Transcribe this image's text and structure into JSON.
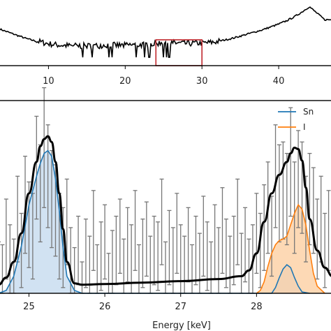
{
  "chart_data": [
    {
      "type": "line",
      "name": "overview",
      "x": [
        0,
        1,
        2,
        3,
        4,
        5,
        6,
        7,
        8,
        9,
        10,
        11,
        12,
        13,
        14,
        15,
        16,
        17,
        18,
        19,
        20,
        21,
        22,
        23,
        24,
        25,
        26,
        27,
        28,
        29,
        30,
        31,
        32,
        33,
        34,
        35,
        36,
        37,
        38,
        39,
        40,
        41,
        42,
        43,
        44,
        45,
        46
      ],
      "y": [
        0.72,
        0.7,
        0.66,
        0.6,
        0.55,
        0.5,
        0.45,
        0.4,
        0.36,
        0.33,
        0.3,
        0.28,
        0.27,
        0.26,
        0.26,
        0.26,
        0.26,
        0.27,
        0.28,
        0.27,
        0.27,
        0.28,
        0.28,
        0.29,
        0.3,
        0.33,
        0.32,
        0.31,
        0.3,
        0.31,
        0.31,
        0.32,
        0.34,
        0.37,
        0.4,
        0.44,
        0.48,
        0.52,
        0.56,
        0.61,
        0.66,
        0.72,
        0.79,
        0.88,
        0.98,
        0.86,
        0.74
      ],
      "xlim": [
        3.5,
        47
      ],
      "xticks": [
        10,
        20,
        30,
        40
      ],
      "ylim": [
        0,
        1
      ],
      "zoom_box": [
        24,
        30
      ],
      "color": "#000000",
      "box_color": "#c0282d"
    },
    {
      "type": "area",
      "name": "zoom",
      "xlabel": "Energy [keV]",
      "xlim": [
        24.6,
        29.0
      ],
      "xticks": [
        25,
        26,
        27,
        28
      ],
      "ylim": [
        0,
        1.35
      ],
      "fit_x": [
        24.6,
        24.7,
        24.8,
        24.9,
        25.0,
        25.1,
        25.15,
        25.2,
        25.25,
        25.3,
        25.35,
        25.4,
        25.45,
        25.5,
        25.6,
        25.7,
        26.0,
        26.5,
        27.0,
        27.5,
        27.8,
        27.9,
        28.0,
        28.1,
        28.2,
        28.3,
        28.4,
        28.45,
        28.5,
        28.55,
        28.6,
        28.65,
        28.7,
        28.8,
        28.9,
        29.0
      ],
      "fit_y": [
        0.06,
        0.11,
        0.22,
        0.42,
        0.7,
        0.92,
        1.03,
        1.08,
        1.1,
        1.06,
        0.92,
        0.7,
        0.45,
        0.22,
        0.07,
        0.06,
        0.065,
        0.075,
        0.085,
        0.1,
        0.12,
        0.16,
        0.28,
        0.5,
        0.7,
        0.83,
        0.92,
        0.98,
        1.02,
        1.01,
        0.93,
        0.74,
        0.52,
        0.3,
        0.18,
        0.12
      ],
      "series": [
        {
          "name": "Sn",
          "color": "#1f77b4",
          "fill": "#c6dbef",
          "x": [
            24.6,
            24.7,
            24.8,
            24.9,
            25.0,
            25.05,
            25.1,
            25.15,
            25.2,
            25.25,
            25.3,
            25.35,
            25.4,
            25.45,
            25.5,
            25.6,
            25.7,
            28.2,
            28.25,
            28.3,
            28.35,
            28.4,
            28.45,
            28.5,
            28.55,
            28.6,
            28.7
          ],
          "y": [
            0,
            0.02,
            0.12,
            0.33,
            0.62,
            0.72,
            0.82,
            0.91,
            0.98,
            1.0,
            0.96,
            0.8,
            0.58,
            0.32,
            0.12,
            0.02,
            0,
            0,
            0.04,
            0.11,
            0.17,
            0.2,
            0.18,
            0.11,
            0.05,
            0.01,
            0
          ]
        },
        {
          "name": "I",
          "color": "#ff7f0e",
          "fill": "#fdd0a2",
          "x": [
            28.0,
            28.05,
            28.1,
            28.15,
            28.2,
            28.25,
            28.3,
            28.35,
            28.4,
            28.45,
            28.5,
            28.55,
            28.6,
            28.65,
            28.7,
            28.75,
            28.8,
            28.9
          ],
          "y": [
            0,
            0.02,
            0.08,
            0.19,
            0.28,
            0.34,
            0.37,
            0.38,
            0.4,
            0.48,
            0.56,
            0.62,
            0.59,
            0.48,
            0.3,
            0.14,
            0.05,
            0
          ]
        }
      ],
      "errorbars": {
        "x": [
          24.6,
          24.65,
          24.7,
          24.75,
          24.8,
          24.85,
          24.9,
          24.95,
          25.0,
          25.05,
          25.1,
          25.15,
          25.2,
          25.25,
          25.3,
          25.35,
          25.4,
          25.45,
          25.5,
          25.55,
          25.6,
          25.65,
          25.7,
          25.75,
          25.8,
          25.85,
          25.9,
          25.95,
          26.0,
          26.05,
          26.1,
          26.15,
          26.2,
          26.25,
          26.3,
          26.35,
          26.4,
          26.45,
          26.5,
          26.55,
          26.6,
          26.65,
          26.7,
          26.75,
          26.8,
          26.85,
          26.9,
          26.95,
          27.0,
          27.05,
          27.1,
          27.15,
          27.2,
          27.25,
          27.3,
          27.35,
          27.4,
          27.45,
          27.5,
          27.55,
          27.6,
          27.65,
          27.7,
          27.75,
          27.8,
          27.85,
          27.9,
          27.95,
          28.0,
          28.05,
          28.1,
          28.15,
          28.2,
          28.25,
          28.3,
          28.35,
          28.4,
          28.45,
          28.5,
          28.55,
          28.6,
          28.65,
          28.7,
          28.75,
          28.8,
          28.85,
          28.9,
          28.95
        ],
        "y": [
          0.14,
          0.1,
          0.38,
          0.24,
          0.12,
          0.52,
          0.3,
          0.62,
          0.48,
          0.4,
          0.88,
          0.7,
          1.02,
          0.82,
          0.66,
          0.58,
          0.4,
          0.32,
          0.5,
          0.22,
          0.1,
          0.3,
          0.02,
          0.28,
          0.18,
          0.44,
          0.12,
          0.26,
          0.36,
          0.08,
          0.22,
          0.3,
          0.4,
          0.16,
          0.34,
          0.24,
          0.44,
          0.12,
          0.28,
          0.38,
          0.18,
          0.3,
          0.26,
          0.5,
          0.14,
          0.32,
          0.22,
          0.42,
          0.24,
          0.18,
          0.34,
          0.12,
          0.3,
          0.2,
          0.4,
          0.26,
          0.14,
          0.36,
          0.22,
          0.44,
          0.28,
          0.18,
          0.3,
          0.5,
          0.2,
          0.34,
          0.16,
          0.24,
          0.42,
          0.3,
          0.46,
          0.6,
          0.4,
          0.82,
          0.7,
          0.72,
          0.66,
          0.92,
          0.6,
          0.8,
          0.74,
          0.52,
          0.66,
          0.58,
          0.38,
          0.52,
          0.3,
          0.44
        ],
        "err": [
          0.22,
          0.24,
          0.28,
          0.24,
          0.26,
          0.3,
          0.26,
          0.34,
          0.3,
          0.3,
          0.36,
          0.34,
          0.42,
          0.36,
          0.34,
          0.32,
          0.3,
          0.28,
          0.3,
          0.24,
          0.22,
          0.24,
          0.2,
          0.24,
          0.22,
          0.28,
          0.22,
          0.24,
          0.26,
          0.2,
          0.22,
          0.24,
          0.26,
          0.22,
          0.26,
          0.24,
          0.28,
          0.22,
          0.24,
          0.26,
          0.22,
          0.24,
          0.24,
          0.3,
          0.22,
          0.26,
          0.24,
          0.28,
          0.24,
          0.22,
          0.26,
          0.22,
          0.24,
          0.22,
          0.28,
          0.24,
          0.22,
          0.26,
          0.24,
          0.3,
          0.24,
          0.22,
          0.24,
          0.3,
          0.22,
          0.26,
          0.22,
          0.24,
          0.28,
          0.26,
          0.3,
          0.32,
          0.28,
          0.36,
          0.34,
          0.34,
          0.32,
          0.38,
          0.32,
          0.34,
          0.32,
          0.3,
          0.32,
          0.3,
          0.28,
          0.3,
          0.26,
          0.28
        ],
        "color": "#777777"
      },
      "legend": {
        "placement": "top-right"
      }
    }
  ]
}
